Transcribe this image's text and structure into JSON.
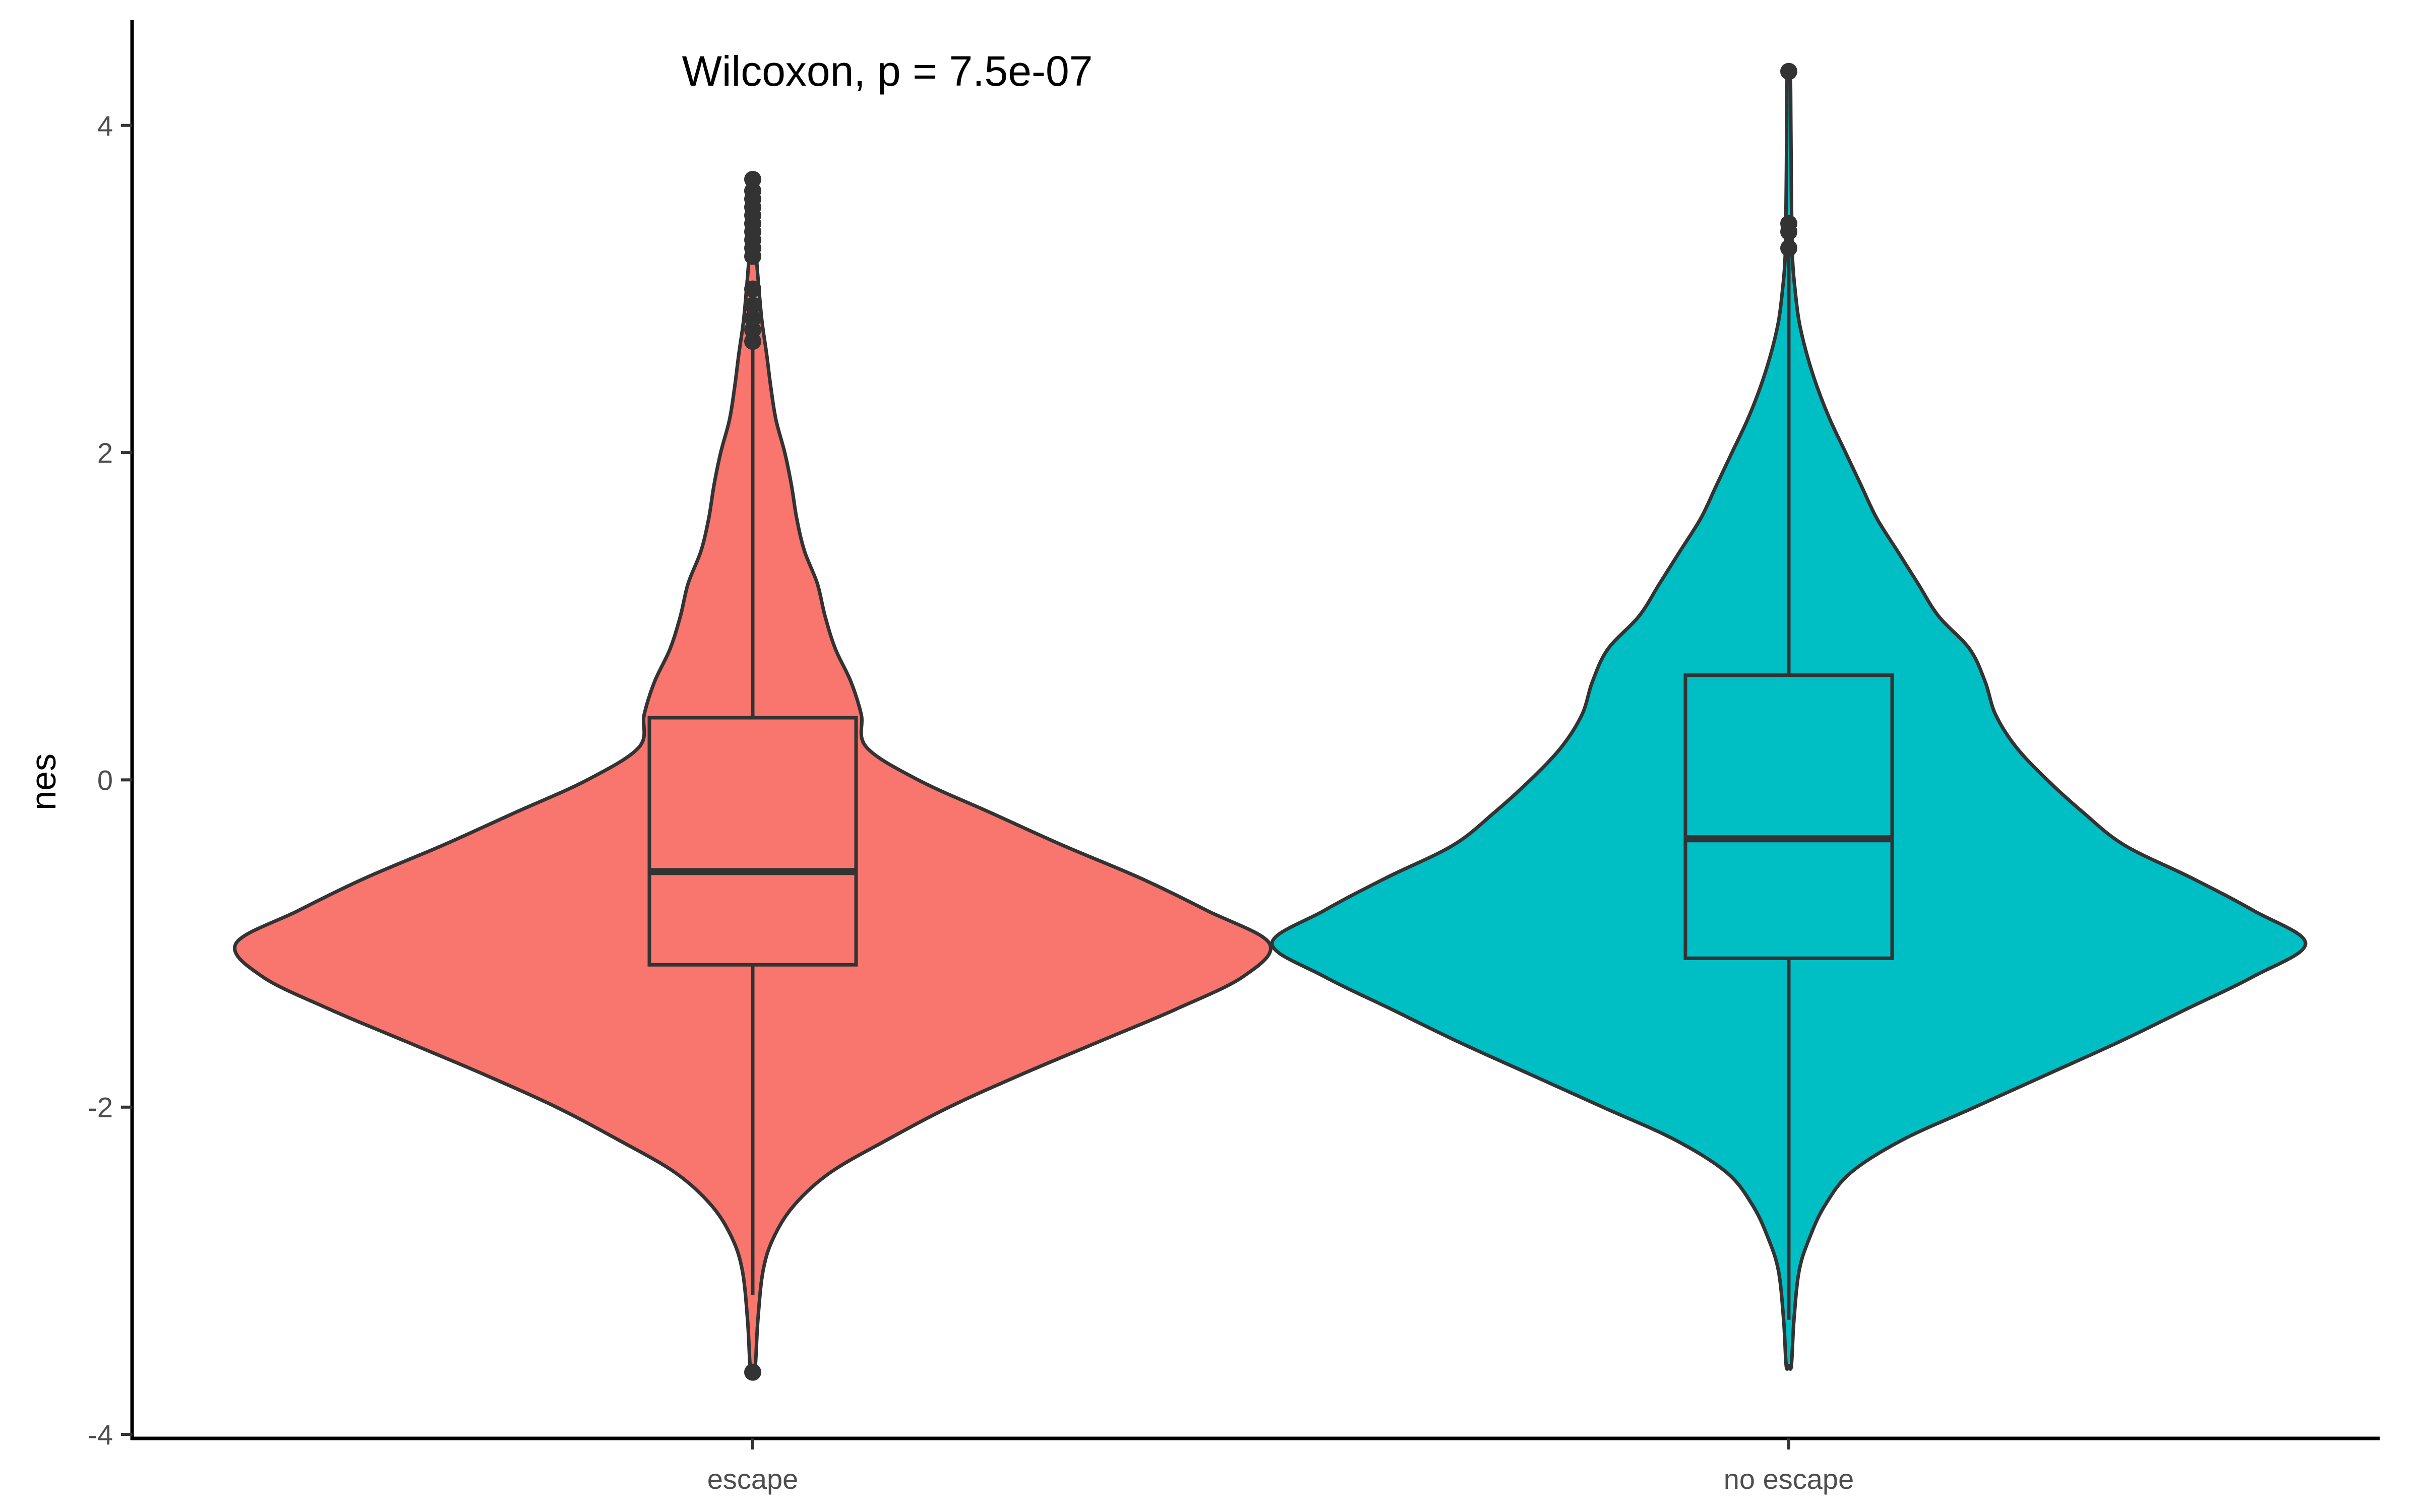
{
  "chart_data": {
    "type": "violin",
    "title": "",
    "xlabel": "",
    "ylabel": "nes",
    "ylim": [
      -4,
      4.6
    ],
    "yticks": [
      "-4",
      "-2",
      "0",
      "2",
      "4"
    ],
    "grid": false,
    "legend": "none",
    "annotation": "Wilcoxon, p = 7.5e-07",
    "categories": [
      "escape",
      "no escape"
    ],
    "series": [
      {
        "category": "escape",
        "color": "#F8766D",
        "box": {
          "q1": -1.13,
          "median": -0.56,
          "q3": 0.38,
          "whisker_low": -3.15,
          "whisker_high": 2.65
        },
        "outliers": [
          -3.62,
          2.68,
          2.75,
          2.82,
          2.9,
          3.0,
          3.2,
          3.25,
          3.3,
          3.35,
          3.4,
          3.45,
          3.5,
          3.55,
          3.6,
          3.67
        ],
        "density": [
          [
            -3.58,
            0.005
          ],
          [
            -3.3,
            0.01
          ],
          [
            -3.0,
            0.02
          ],
          [
            -2.8,
            0.04
          ],
          [
            -2.6,
            0.08
          ],
          [
            -2.4,
            0.15
          ],
          [
            -2.2,
            0.26
          ],
          [
            -2.0,
            0.38
          ],
          [
            -1.8,
            0.52
          ],
          [
            -1.6,
            0.67
          ],
          [
            -1.4,
            0.82
          ],
          [
            -1.2,
            0.95
          ],
          [
            -1.0,
            1.0
          ],
          [
            -0.8,
            0.88
          ],
          [
            -0.6,
            0.75
          ],
          [
            -0.4,
            0.6
          ],
          [
            -0.2,
            0.46
          ],
          [
            0.0,
            0.32
          ],
          [
            0.2,
            0.22
          ],
          [
            0.4,
            0.21
          ],
          [
            0.6,
            0.19
          ],
          [
            0.8,
            0.16
          ],
          [
            1.0,
            0.14
          ],
          [
            1.2,
            0.125
          ],
          [
            1.4,
            0.1
          ],
          [
            1.6,
            0.085
          ],
          [
            1.8,
            0.075
          ],
          [
            2.0,
            0.062
          ],
          [
            2.2,
            0.045
          ],
          [
            2.4,
            0.035
          ],
          [
            2.6,
            0.027
          ],
          [
            2.8,
            0.018
          ],
          [
            3.0,
            0.012
          ],
          [
            3.2,
            0.007
          ],
          [
            3.43,
            0.003
          ]
        ]
      },
      {
        "category": "no escape",
        "color": "#00BFC4",
        "box": {
          "q1": -1.09,
          "median": -0.36,
          "q3": 0.64,
          "whisker_low": -3.3,
          "whisker_high": 3.2
        },
        "outliers": [
          3.25,
          3.35,
          3.4,
          4.33
        ],
        "density": [
          [
            -3.58,
            0.005
          ],
          [
            -3.3,
            0.01
          ],
          [
            -3.0,
            0.02
          ],
          [
            -2.8,
            0.04
          ],
          [
            -2.6,
            0.07
          ],
          [
            -2.4,
            0.12
          ],
          [
            -2.2,
            0.22
          ],
          [
            -2.0,
            0.36
          ],
          [
            -1.8,
            0.5
          ],
          [
            -1.6,
            0.64
          ],
          [
            -1.4,
            0.77
          ],
          [
            -1.2,
            0.9
          ],
          [
            -1.0,
            1.0
          ],
          [
            -0.8,
            0.9
          ],
          [
            -0.6,
            0.78
          ],
          [
            -0.4,
            0.65
          ],
          [
            -0.2,
            0.57
          ],
          [
            0.0,
            0.5
          ],
          [
            0.2,
            0.44
          ],
          [
            0.4,
            0.4
          ],
          [
            0.6,
            0.38
          ],
          [
            0.8,
            0.35
          ],
          [
            1.0,
            0.29
          ],
          [
            1.2,
            0.25
          ],
          [
            1.4,
            0.21
          ],
          [
            1.6,
            0.17
          ],
          [
            1.8,
            0.14
          ],
          [
            2.0,
            0.11
          ],
          [
            2.2,
            0.08
          ],
          [
            2.4,
            0.055
          ],
          [
            2.6,
            0.035
          ],
          [
            2.8,
            0.02
          ],
          [
            3.0,
            0.012
          ],
          [
            3.2,
            0.007
          ],
          [
            3.6,
            0.005
          ],
          [
            4.0,
            0.004
          ],
          [
            4.33,
            0.003
          ]
        ]
      }
    ]
  }
}
